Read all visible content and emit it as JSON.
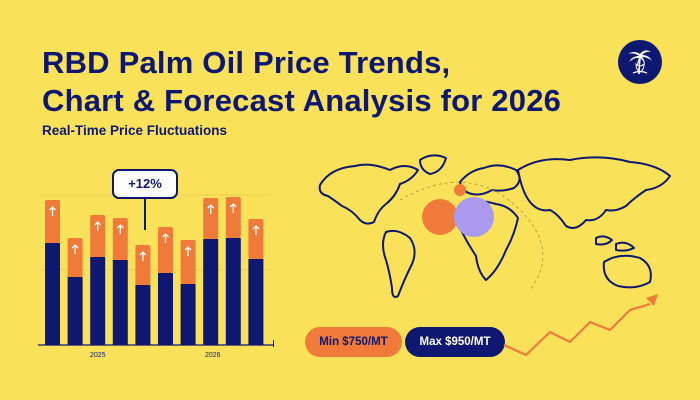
{
  "header": {
    "title_line1": "RBD Palm Oil Price Trends,",
    "title_line2": "Chart & Forecast Analysis for 2026",
    "subtitle": "Real-Time Price Fluctuations"
  },
  "badge": {
    "change": "+12%"
  },
  "price_range": {
    "min_label": "Min $750/MT",
    "max_label": "Max $950/MT"
  },
  "axis_years": [
    "2025",
    "2026"
  ],
  "icons": [
    "palm-tree-logo-icon",
    "world-map-icon",
    "up-arrow-icon",
    "trend-arrow-icon"
  ],
  "colors": {
    "background": "#F9E25A",
    "navy": "#0E1870",
    "orange": "#F07A3A",
    "lavender": "#A99AF0"
  },
  "chart_data": {
    "type": "bar",
    "stacked": true,
    "series": [
      {
        "values": [
          102,
          68,
          88,
          85,
          60,
          72,
          61,
          106,
          107,
          86
        ]
      },
      {
        "values": [
          43,
          39,
          42,
          42,
          40,
          46,
          44,
          41,
          41,
          40
        ]
      }
    ],
    "ylim": [
      0,
      150
    ]
  }
}
